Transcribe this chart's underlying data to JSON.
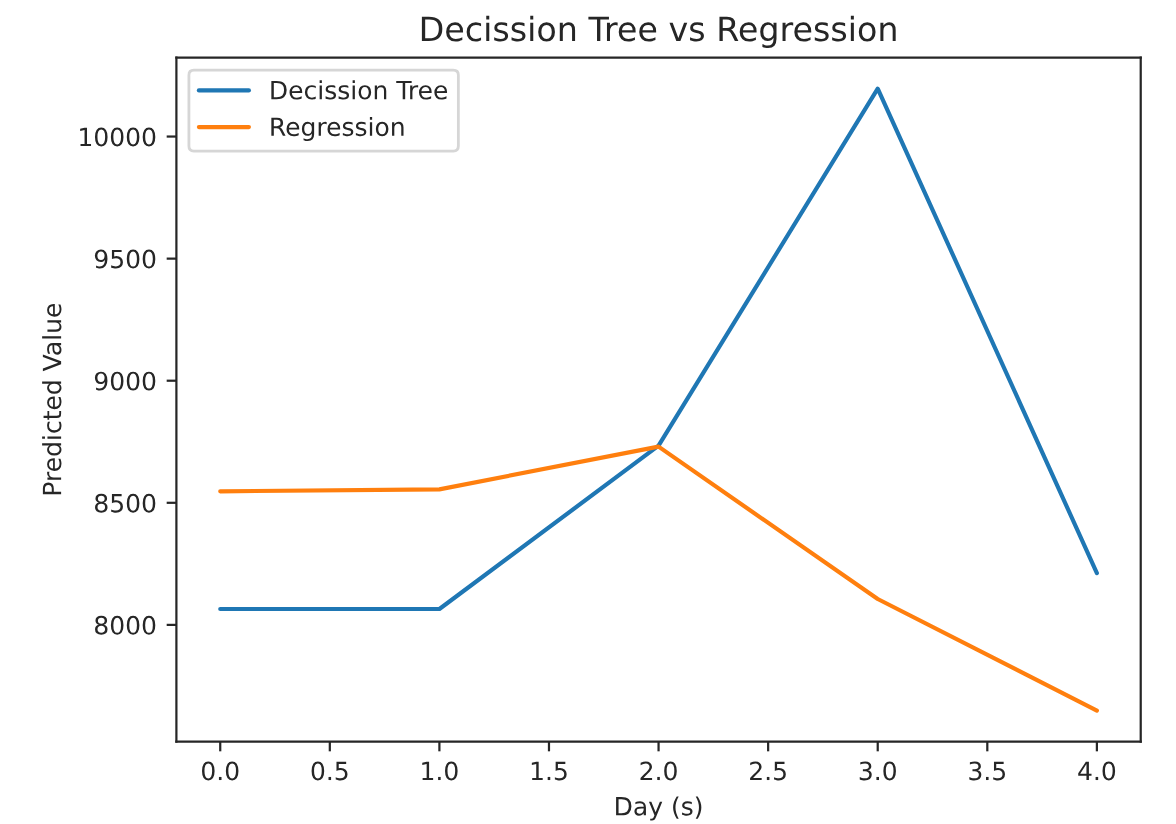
{
  "chart_data": {
    "type": "line",
    "title": "Decission Tree vs Regression",
    "xlabel": "Day (s)",
    "ylabel": "Predicted Value",
    "x": [
      0,
      1,
      2,
      3,
      4
    ],
    "series": [
      {
        "name": "Decission Tree",
        "color": "#1f77b4",
        "values": [
          8065,
          8065,
          8734,
          10196,
          8212
        ]
      },
      {
        "name": "Regression",
        "color": "#ff7f0e",
        "values": [
          8547,
          8555,
          8730,
          8106,
          7649
        ]
      }
    ],
    "xlim": [
      -0.2,
      4.2
    ],
    "xticks": [
      {
        "value": 0,
        "label": "0.0"
      },
      {
        "value": 0.5,
        "label": "0.5"
      },
      {
        "value": 1,
        "label": "1.0"
      },
      {
        "value": 1.5,
        "label": "1.5"
      },
      {
        "value": 2,
        "label": "2.0"
      },
      {
        "value": 2.5,
        "label": "2.5"
      },
      {
        "value": 3,
        "label": "3.0"
      },
      {
        "value": 3.5,
        "label": "3.5"
      },
      {
        "value": 4,
        "label": "4.0"
      }
    ],
    "ylim": [
      7522,
      10323
    ],
    "yticks": [
      8000,
      8500,
      9000,
      9500,
      10000
    ],
    "legend": "top left",
    "grid": false
  }
}
